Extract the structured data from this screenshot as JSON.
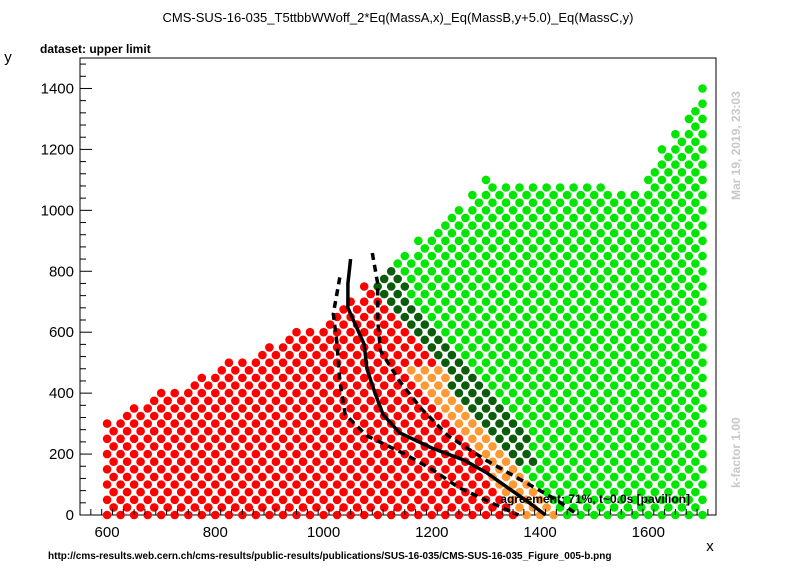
{
  "chart_data": {
    "type": "scatter",
    "title": "CMS-SUS-16-035_T5ttbbWWoff_2*Eq(MassA,x)_Eq(MassB,y+5.0)_Eq(MassC,y)",
    "subtitle": "dataset: upper limit",
    "xlabel": "x",
    "ylabel": "y",
    "xlim": [
      550,
      1725
    ],
    "ylim": [
      0,
      1500
    ],
    "xticks": [
      600,
      800,
      1000,
      1200,
      1400,
      1600
    ],
    "yticks": [
      0,
      200,
      400,
      600,
      800,
      1000,
      1200,
      1400
    ],
    "grid": false,
    "side_labels": {
      "timestamp": "Mar 19, 2019, 23:03",
      "kfactor": "k-factor 1.00"
    },
    "annotation": "agreement: 71%, t~0.0s [pavilion]",
    "footer_url": "http://cms-results.web.cern.ch/cms-results/public-results/publications/SUS-16-035/CMS-SUS-16-035_Figure_005-b.png",
    "series": [
      {
        "color": "#ff0000",
        "points": "red"
      },
      {
        "color": "#ff9933",
        "points": "orange"
      },
      {
        "color": "#0b5d0b",
        "points": "darkgreen"
      },
      {
        "color": "#00e600",
        "points": "green"
      }
    ],
    "lines": [
      {
        "style": "solid",
        "points": [
          [
            1050,
            840
          ],
          [
            1045,
            760
          ],
          [
            1045,
            680
          ],
          [
            1060,
            620
          ],
          [
            1075,
            560
          ],
          [
            1080,
            480
          ],
          [
            1095,
            400
          ],
          [
            1110,
            330
          ],
          [
            1140,
            270
          ],
          [
            1200,
            220
          ],
          [
            1260,
            180
          ],
          [
            1300,
            140
          ],
          [
            1340,
            90
          ],
          [
            1380,
            40
          ],
          [
            1410,
            0
          ]
        ]
      },
      {
        "style": "dashed",
        "points": [
          [
            1030,
            780
          ],
          [
            1018,
            660
          ],
          [
            1025,
            560
          ],
          [
            1030,
            440
          ],
          [
            1040,
            330
          ],
          [
            1080,
            260
          ],
          [
            1150,
            200
          ],
          [
            1200,
            150
          ],
          [
            1250,
            90
          ],
          [
            1310,
            40
          ],
          [
            1360,
            0
          ]
        ]
      },
      {
        "style": "dashed",
        "points": [
          [
            1090,
            860
          ],
          [
            1100,
            760
          ],
          [
            1100,
            640
          ],
          [
            1105,
            540
          ],
          [
            1140,
            440
          ],
          [
            1180,
            350
          ],
          [
            1230,
            260
          ],
          [
            1300,
            180
          ],
          [
            1370,
            110
          ],
          [
            1430,
            50
          ],
          [
            1470,
            0
          ]
        ]
      }
    ]
  }
}
